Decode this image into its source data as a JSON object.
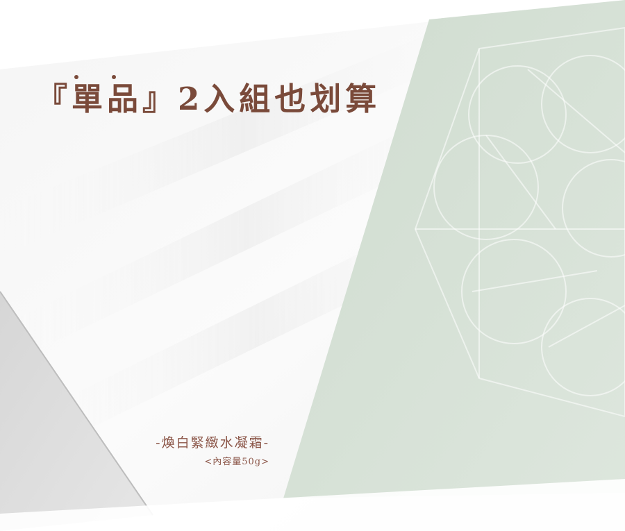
{
  "headline": {
    "text": "『單品』2入組也划算"
  },
  "product": {
    "name": "-煥白緊緻水凝霜-",
    "volume": "<內容量50g>"
  },
  "colors": {
    "text_brown": "#7a4a3a",
    "sage": "#d9e3da",
    "concrete": "#dcdcdc",
    "paper": "#fafafa"
  }
}
